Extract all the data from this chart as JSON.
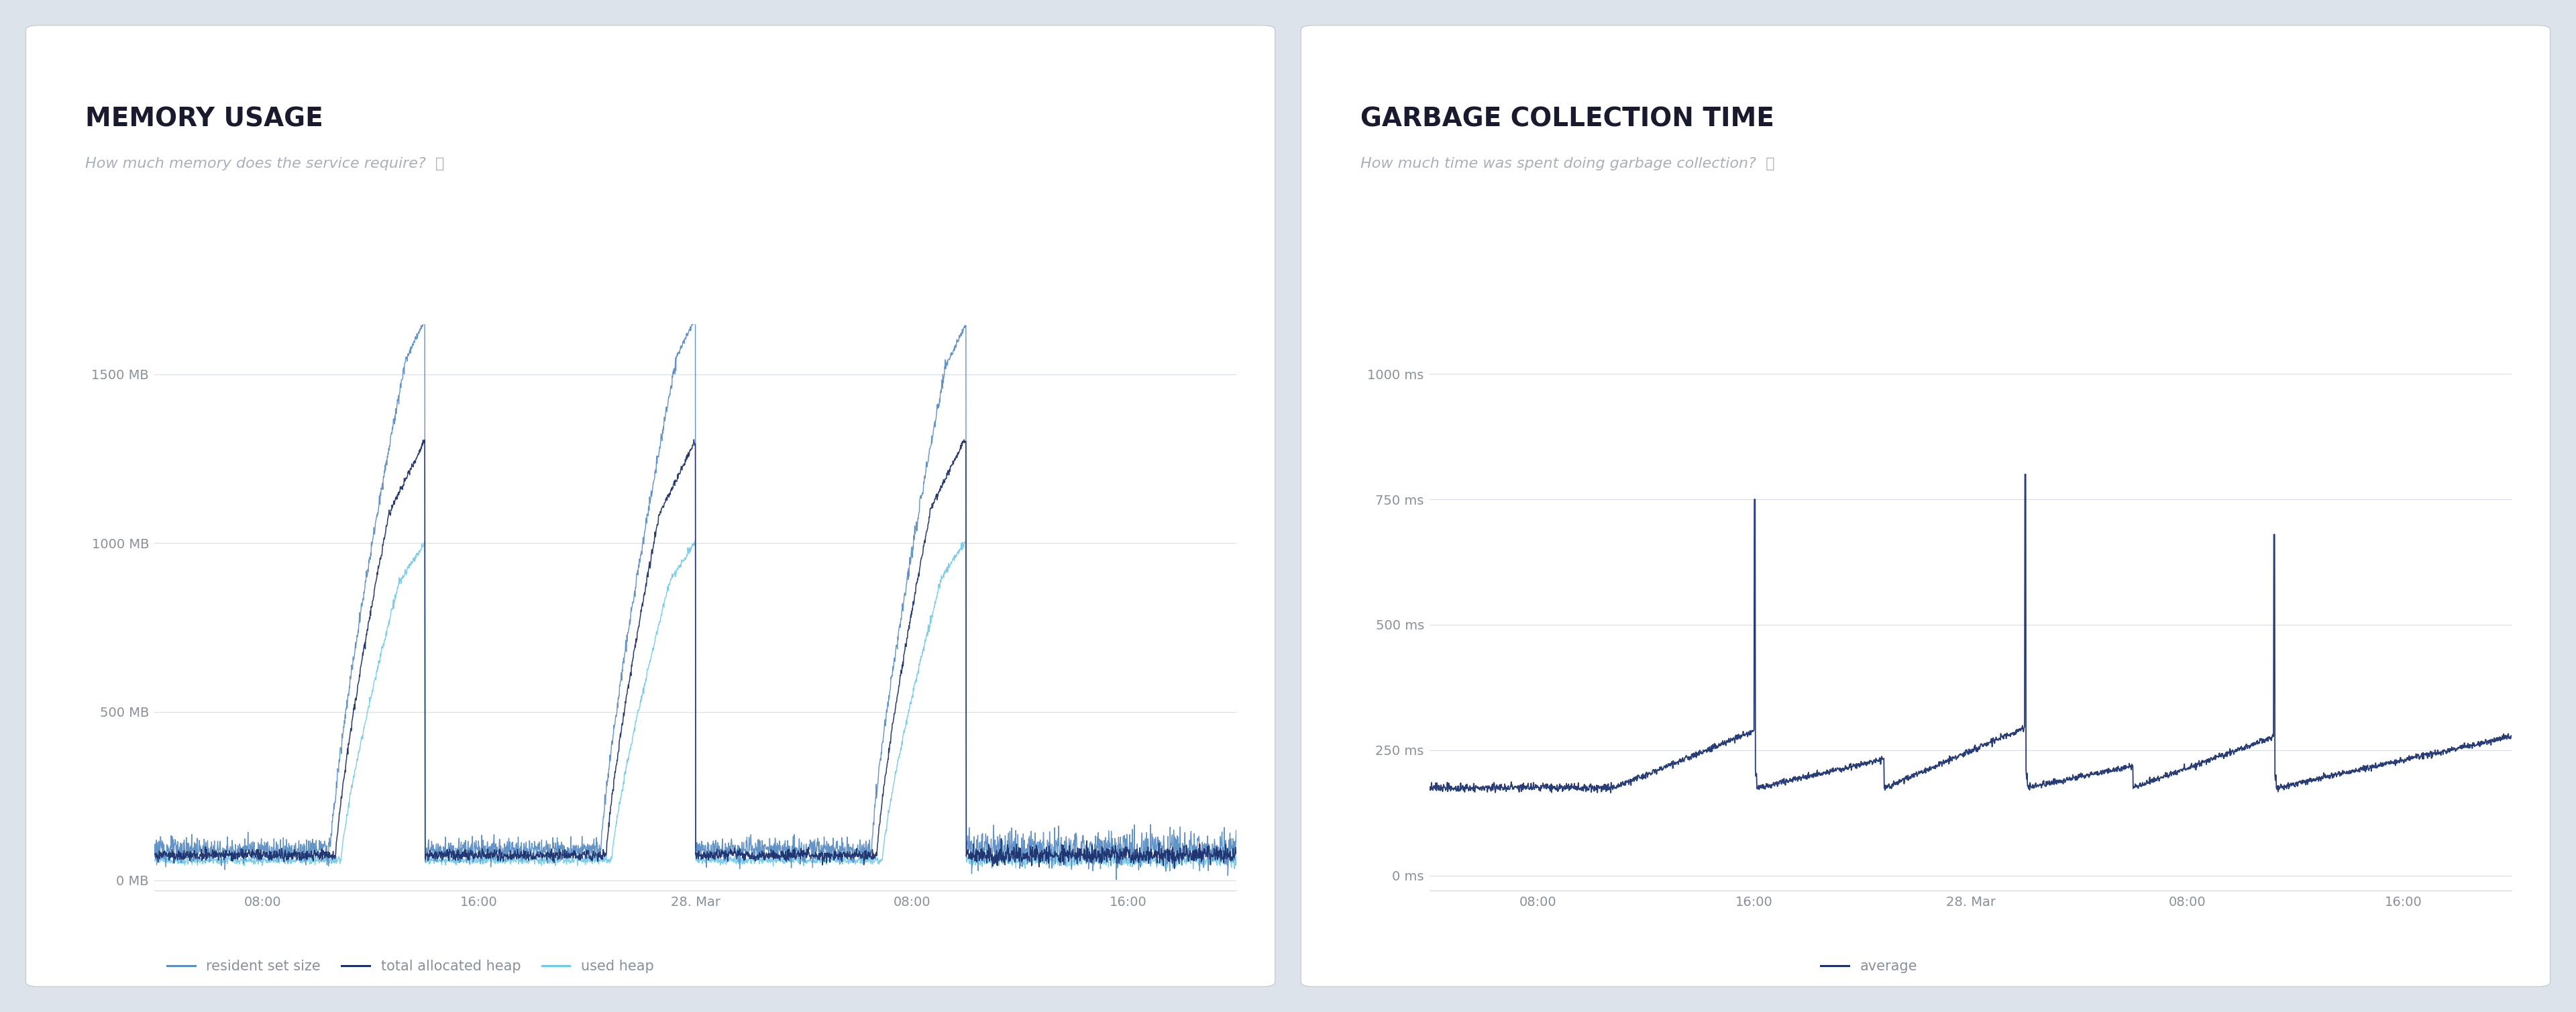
{
  "fig_width": 38.4,
  "fig_height": 15.08,
  "bg_color": "#dce3ea",
  "panel_bg": "#ffffff",
  "panel1_title": "MEMORY USAGE",
  "panel1_subtitle": "How much memory does the service require?",
  "panel2_title": "GARBAGE COLLECTION TIME",
  "panel2_subtitle": "How much time was spent doing garbage collection?",
  "mem_yticks": [
    0,
    500,
    1000,
    1500
  ],
  "mem_ylabels": [
    "0 MB",
    "500 MB",
    "1000 MB",
    "1500 MB"
  ],
  "mem_ylim": [
    -30,
    1650
  ],
  "gc_yticks": [
    0,
    250,
    500,
    750,
    1000
  ],
  "gc_ylabels": [
    "0 ms",
    "250 ms",
    "500 ms",
    "750 ms",
    "1000 ms"
  ],
  "gc_ylim": [
    -30,
    1100
  ],
  "xtick_labels": [
    "08:00",
    "16:00",
    "28. Mar",
    "08:00",
    "16:00"
  ],
  "xtick_positions": [
    0.1,
    0.3,
    0.5,
    0.7,
    0.9
  ],
  "color_resident": "#5b8ec5",
  "color_total_heap": "#1c2f6b",
  "color_used_heap": "#6ec8e8",
  "color_gc": "#1c3270",
  "color_grid": "#d8dde3",
  "color_axis_line": "#d0d5db",
  "color_title": "#1a1a2e",
  "color_subtitle": "#aab0bb",
  "color_tick_label": "#8a9099",
  "legend1_labels": [
    "resident set size",
    "total allocated heap",
    "used heap"
  ],
  "legend2_labels": [
    "average"
  ],
  "title_fontsize": 28,
  "subtitle_fontsize": 16,
  "tick_fontsize": 14,
  "legend_fontsize": 15
}
